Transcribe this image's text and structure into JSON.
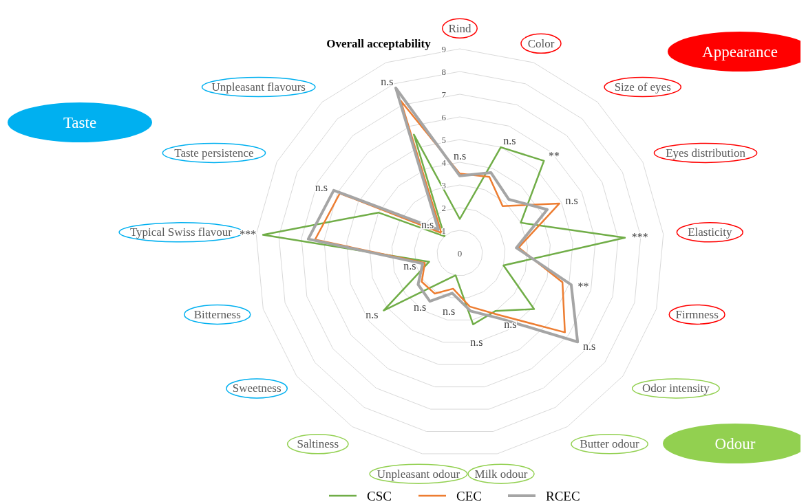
{
  "chart_data": {
    "type": "radar",
    "categories": [
      "Rind",
      "Color",
      "Size of eyes",
      "Eyes distribution",
      "Elasticity",
      "Firmness",
      "Odor intensity",
      "Butter odour",
      "Milk odour",
      "Unpleasant odour",
      "Saltiness",
      "Sweetness",
      "Bitterness",
      "Typical Swiss flavour",
      "Taste persistence",
      "Unpleasant flavours",
      "Overall acceptability"
    ],
    "series": [
      {
        "name": "CSC",
        "color": "#70ad47",
        "values": [
          1.5,
          5.0,
          5.5,
          3.0,
          7.3,
          2.0,
          4.1,
          3.0,
          3.2,
          1.0,
          1.5,
          4.2,
          1.4,
          8.7,
          4.0,
          1.0,
          5.6
        ]
      },
      {
        "name": "CEC",
        "color": "#ed7d31",
        "values": [
          3.5,
          3.6,
          2.8,
          4.9,
          2.6,
          4.7,
          5.8,
          3.2,
          2.4,
          1.6,
          2.1,
          2.1,
          1.6,
          6.4,
          5.9,
          1.2,
          7.2
        ]
      },
      {
        "name": "RCEC",
        "color": "#a5a5a5",
        "values": [
          3.4,
          3.8,
          3.2,
          4.3,
          2.5,
          5.1,
          6.5,
          3.4,
          2.6,
          1.8,
          2.5,
          2.3,
          1.7,
          6.7,
          6.2,
          1.4,
          7.8
        ]
      }
    ],
    "ylim": [
      0,
      9
    ],
    "yticks": [
      0,
      1,
      2,
      3,
      4,
      5,
      6,
      7,
      8,
      9
    ],
    "grid": true,
    "legend": "bottom",
    "annotations": [
      {
        "text": "n.s",
        "x": "Rind"
      },
      {
        "text": "n.s",
        "x": "Color"
      },
      {
        "text": "**",
        "x": "Size of eyes"
      },
      {
        "text": "n.s",
        "x": "Eyes distribution"
      },
      {
        "text": "***",
        "x": "Elasticity"
      },
      {
        "text": "**",
        "x": "Firmness"
      },
      {
        "text": "n.s",
        "x": "Odor intensity"
      },
      {
        "text": "n.s",
        "x": "Butter odour"
      },
      {
        "text": "n.s",
        "x": "Milk odour"
      },
      {
        "text": "n.s",
        "x": "Unpleasant odour"
      },
      {
        "text": "n.s",
        "x": "Saltiness"
      },
      {
        "text": "n.s",
        "x": "Sweetness"
      },
      {
        "text": "n.s",
        "x": "Bitterness"
      },
      {
        "text": "***",
        "x": "Typical Swiss flavour"
      },
      {
        "text": "n.s",
        "x": "Taste persistence"
      },
      {
        "text": "n.s",
        "x": "Unpleasant flavours"
      },
      {
        "text": "n.s",
        "x": "Overall acceptability"
      },
      "Appearance",
      "Taste",
      "Odour"
    ]
  }
}
